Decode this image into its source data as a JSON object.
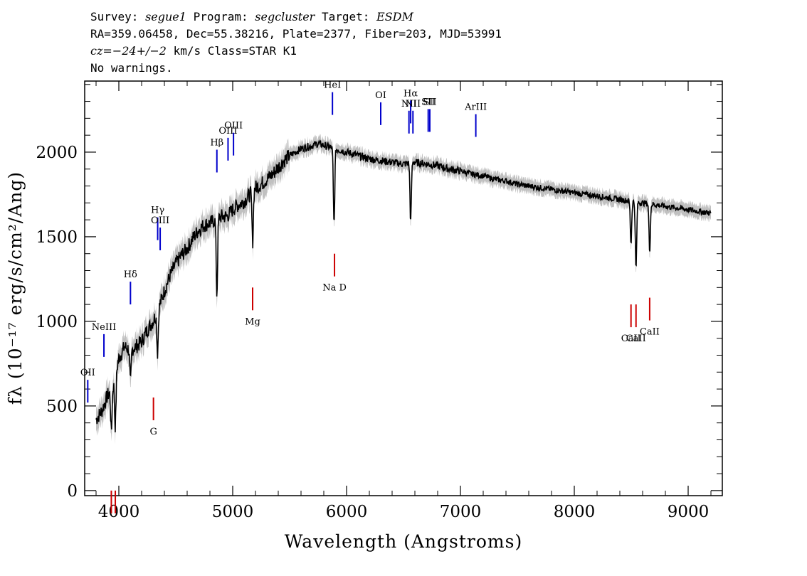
{
  "header": {
    "line1": {
      "survey_label": "Survey: ",
      "survey": "segue1",
      "program_label": " Program: ",
      "program": "segcluster",
      "target_label": " Target: ",
      "target": "ESDM"
    },
    "line2": "RA=359.06458, Dec=55.38216, Plate=2377, Fiber=203, MJD=53991",
    "line3": {
      "cz": "cz=−24+/−2",
      "rest": " km/s Class=STAR K1"
    },
    "line4": "No warnings."
  },
  "chart_data": {
    "type": "line",
    "xlabel": "Wavelength (Angstroms)",
    "ylabel": "fλ (10⁻¹⁷ erg/s/cm²/Ang)",
    "xlim": [
      3700,
      9300
    ],
    "ylim": [
      -30,
      2420
    ],
    "x_ticks": [
      4000,
      5000,
      6000,
      7000,
      8000,
      9000
    ],
    "y_ticks": [
      0,
      500,
      1000,
      1500,
      2000
    ],
    "x_tick_labels": [
      "4000",
      "5000",
      "6000",
      "7000",
      "8000",
      "9000"
    ],
    "y_tick_labels": [
      "0",
      "500",
      "1000",
      "1500",
      "2000"
    ],
    "series": [
      {
        "name": "flux",
        "color": "#000000",
        "x": [
          3800,
          3850,
          3900,
          3950,
          4000,
          4050,
          4100,
          4150,
          4200,
          4250,
          4300,
          4350,
          4400,
          4450,
          4500,
          4550,
          4600,
          4650,
          4700,
          4750,
          4800,
          4850,
          4900,
          4950,
          5000,
          5050,
          5100,
          5150,
          5200,
          5250,
          5300,
          5350,
          5400,
          5450,
          5500,
          5550,
          5600,
          5650,
          5700,
          5750,
          5800,
          5850,
          5900,
          5950,
          6000,
          6050,
          6100,
          6200,
          6300,
          6400,
          6500,
          6600,
          6700,
          6800,
          6900,
          7000,
          7100,
          7200,
          7300,
          7400,
          7500,
          7600,
          7700,
          7800,
          7900,
          8000,
          8100,
          8200,
          8300,
          8400,
          8500,
          8600,
          8700,
          8800,
          8900,
          9000,
          9100,
          9200
        ],
        "y": [
          420,
          470,
          560,
          620,
          780,
          850,
          830,
          850,
          880,
          950,
          1000,
          1080,
          1180,
          1270,
          1340,
          1390,
          1430,
          1490,
          1540,
          1570,
          1580,
          1600,
          1620,
          1620,
          1660,
          1690,
          1710,
          1750,
          1790,
          1810,
          1840,
          1870,
          1910,
          1950,
          1980,
          2000,
          2020,
          2030,
          2040,
          2050,
          2040,
          2030,
          2020,
          2010,
          2000,
          1990,
          1980,
          1960,
          1950,
          1940,
          1930,
          1940,
          1930,
          1920,
          1900,
          1890,
          1870,
          1860,
          1840,
          1830,
          1810,
          1800,
          1790,
          1780,
          1770,
          1760,
          1750,
          1740,
          1730,
          1720,
          1710,
          1700,
          1690,
          1680,
          1670,
          1660,
          1650,
          1640
        ]
      },
      {
        "name": "absorption_dips",
        "color": "#000000",
        "x": [
          3934,
          3969,
          4102,
          4340,
          4861,
          5175,
          5890,
          6563,
          8498,
          8542,
          8662
        ],
        "depth": [
          250,
          300,
          200,
          250,
          450,
          300,
          450,
          350,
          250,
          400,
          280
        ]
      }
    ],
    "emission_lines": [
      {
        "label": "OII",
        "x": 3727,
        "y": 520
      },
      {
        "label": "NeIII",
        "x": 3869,
        "y": 790
      },
      {
        "label": "Hδ",
        "x": 4102,
        "y": 1100
      },
      {
        "label": "Hγ",
        "x": 4341,
        "y": 1480
      },
      {
        "label": "OIII",
        "x": 4363,
        "y": 1420
      },
      {
        "label": "Hβ",
        "x": 4861,
        "y": 1880
      },
      {
        "label": "OIII",
        "x": 4959,
        "y": 1950
      },
      {
        "label": "OIII",
        "x": 5007,
        "y": 1980
      },
      {
        "label": "HeI",
        "x": 5876,
        "y": 2220
      },
      {
        "label": "OI",
        "x": 6300,
        "y": 2160
      },
      {
        "label": "NII",
        "x": 6548,
        "y": 2110
      },
      {
        "label": "Hα",
        "x": 6563,
        "y": 2170
      },
      {
        "label": "NII",
        "x": 6583,
        "y": 2110
      },
      {
        "label": "SII",
        "x": 6717,
        "y": 2120
      },
      {
        "label": "SII",
        "x": 6731,
        "y": 2120
      },
      {
        "label": "ArIII",
        "x": 7135,
        "y": 2090
      }
    ],
    "absorption_lines": [
      {
        "label": "",
        "x": 3934,
        "y": 0
      },
      {
        "label": "",
        "x": 3969,
        "y": 0
      },
      {
        "label": "G",
        "x": 4304,
        "y": 550
      },
      {
        "label": "Mg",
        "x": 5175,
        "y": 1200
      },
      {
        "label": "Na D",
        "x": 5894,
        "y": 1400
      },
      {
        "label": "CaII",
        "x": 8498,
        "y": 1100
      },
      {
        "label": "CaII",
        "x": 8542,
        "y": 1100
      },
      {
        "label": "CaII",
        "x": 8662,
        "y": 1140
      }
    ],
    "emission_color": "#0000cc",
    "absorption_color": "#cc0000",
    "error_color": "#c0c0c0"
  }
}
